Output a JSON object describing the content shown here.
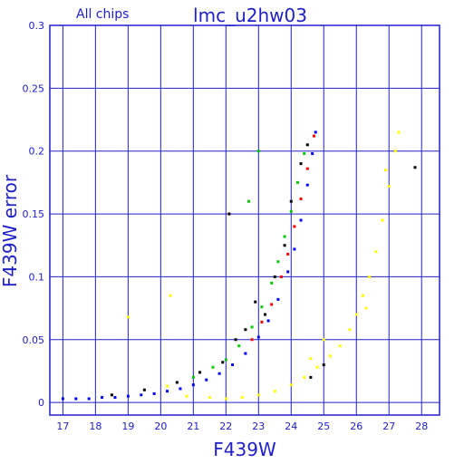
{
  "chart_data": {
    "type": "scatter",
    "title": "lmc_u2hw03",
    "subtitle": "All chips",
    "xlabel": "F439W",
    "ylabel": "F439W error",
    "xlim": [
      16.6,
      28.55
    ],
    "ylim": [
      -0.01,
      0.3
    ],
    "x_ticks": [
      17,
      18,
      19,
      20,
      21,
      22,
      23,
      24,
      25,
      26,
      27,
      28
    ],
    "y_ticks": [
      0,
      0.05,
      0.1,
      0.15,
      0.2,
      0.25,
      0.3
    ],
    "y_tick_labels": [
      "0",
      "0.05",
      "0.1",
      "0.15",
      "0.2",
      "0.25",
      "0.3"
    ],
    "grid": true,
    "colors": {
      "axis": "#2020c8",
      "grid": "#2020c8",
      "title": "#2020c8"
    },
    "series": [
      {
        "color": "#0000ff",
        "points": [
          [
            17.0,
            0.003
          ],
          [
            17.4,
            0.003
          ],
          [
            17.8,
            0.003
          ],
          [
            18.2,
            0.004
          ],
          [
            18.6,
            0.004
          ],
          [
            19.0,
            0.005
          ],
          [
            19.4,
            0.006
          ],
          [
            19.8,
            0.007
          ],
          [
            20.2,
            0.009
          ],
          [
            20.6,
            0.011
          ],
          [
            21.0,
            0.014
          ],
          [
            21.4,
            0.018
          ],
          [
            21.8,
            0.023
          ],
          [
            22.2,
            0.03
          ],
          [
            22.6,
            0.039
          ],
          [
            23.0,
            0.052
          ],
          [
            23.3,
            0.065
          ],
          [
            23.6,
            0.082
          ],
          [
            23.9,
            0.104
          ],
          [
            24.1,
            0.122
          ],
          [
            24.3,
            0.145
          ],
          [
            24.5,
            0.173
          ],
          [
            24.65,
            0.198
          ],
          [
            24.75,
            0.215
          ]
        ]
      },
      {
        "color": "#ff0000",
        "points": [
          [
            22.8,
            0.05
          ],
          [
            23.1,
            0.064
          ],
          [
            23.4,
            0.078
          ],
          [
            23.7,
            0.1
          ],
          [
            23.9,
            0.118
          ],
          [
            24.1,
            0.14
          ],
          [
            24.3,
            0.162
          ],
          [
            24.5,
            0.186
          ],
          [
            24.7,
            0.212
          ]
        ]
      },
      {
        "color": "#00cc00",
        "points": [
          [
            21.6,
            0.028
          ],
          [
            22.0,
            0.034
          ],
          [
            22.4,
            0.045
          ],
          [
            22.8,
            0.06
          ],
          [
            23.1,
            0.076
          ],
          [
            23.4,
            0.095
          ],
          [
            23.6,
            0.112
          ],
          [
            23.8,
            0.132
          ],
          [
            24.0,
            0.152
          ],
          [
            24.2,
            0.175
          ],
          [
            24.4,
            0.198
          ],
          [
            23.0,
            0.2
          ],
          [
            22.7,
            0.16
          ],
          [
            21.0,
            0.02
          ]
        ]
      },
      {
        "color": "#000000",
        "points": [
          [
            18.5,
            0.006
          ],
          [
            19.5,
            0.01
          ],
          [
            20.5,
            0.016
          ],
          [
            21.2,
            0.024
          ],
          [
            21.9,
            0.032
          ],
          [
            22.3,
            0.05
          ],
          [
            22.6,
            0.058
          ],
          [
            22.9,
            0.08
          ],
          [
            23.2,
            0.07
          ],
          [
            23.5,
            0.1
          ],
          [
            23.8,
            0.125
          ],
          [
            24.0,
            0.16
          ],
          [
            24.3,
            0.19
          ],
          [
            24.5,
            0.205
          ],
          [
            22.1,
            0.15
          ],
          [
            24.6,
            0.02
          ],
          [
            25.0,
            0.03
          ],
          [
            27.8,
            0.187
          ]
        ]
      },
      {
        "color": "#ffff00",
        "points": [
          [
            19.0,
            0.068
          ],
          [
            20.2,
            0.013
          ],
          [
            20.8,
            0.005
          ],
          [
            21.5,
            0.004
          ],
          [
            22.0,
            0.003
          ],
          [
            22.5,
            0.004
          ],
          [
            23.0,
            0.006
          ],
          [
            23.5,
            0.009
          ],
          [
            24.0,
            0.014
          ],
          [
            24.4,
            0.02
          ],
          [
            24.8,
            0.028
          ],
          [
            25.2,
            0.037
          ],
          [
            25.5,
            0.045
          ],
          [
            25.8,
            0.058
          ],
          [
            26.0,
            0.07
          ],
          [
            26.2,
            0.085
          ],
          [
            26.4,
            0.1
          ],
          [
            26.6,
            0.12
          ],
          [
            26.8,
            0.145
          ],
          [
            27.0,
            0.172
          ],
          [
            27.2,
            0.2
          ],
          [
            27.3,
            0.215
          ],
          [
            26.9,
            0.185
          ],
          [
            25.0,
            0.05
          ],
          [
            24.6,
            0.035
          ],
          [
            26.3,
            0.075
          ],
          [
            20.3,
            0.085
          ]
        ]
      }
    ]
  }
}
